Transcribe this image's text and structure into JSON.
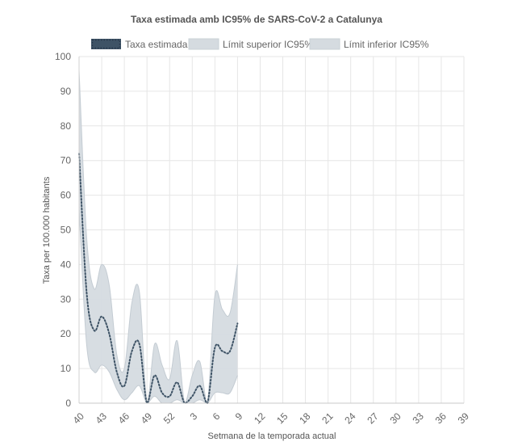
{
  "chart_data": {
    "type": "line",
    "title": "Taxa estimada amb IC95% de SARS-CoV-2 a Catalunya",
    "xlabel": "Setmana de la temporada actual",
    "ylabel": "Taxa per 100.000 habitants",
    "ylim": [
      0,
      100
    ],
    "yticks": [
      0,
      10,
      20,
      30,
      40,
      50,
      60,
      70,
      80,
      90,
      100
    ],
    "grid": true,
    "legend_position": "top",
    "x_categories": [
      "40",
      "41",
      "42",
      "43",
      "44",
      "45",
      "46",
      "47",
      "48",
      "49",
      "50",
      "51",
      "52",
      "1",
      "2",
      "3",
      "4",
      "5",
      "6",
      "7",
      "8",
      "9",
      "10",
      "11",
      "12",
      "13",
      "14",
      "15",
      "16",
      "17",
      "18",
      "19",
      "20",
      "21",
      "22",
      "23",
      "24",
      "25",
      "26",
      "27",
      "28",
      "29",
      "30",
      "31",
      "32",
      "33",
      "34",
      "35",
      "36",
      "37",
      "38",
      "39"
    ],
    "x_tick_labels": [
      "40",
      "43",
      "46",
      "49",
      "52",
      "3",
      "6",
      "9",
      "12",
      "15",
      "18",
      "21",
      "24",
      "27",
      "30",
      "33",
      "36",
      "39"
    ],
    "series": [
      {
        "name": "Taxa estimada",
        "style": "dotted",
        "color": "#3e5366",
        "values": [
          72,
          32,
          21,
          25,
          20,
          9,
          5,
          15,
          17,
          0,
          8,
          3,
          2,
          6,
          0,
          2,
          5,
          0,
          16,
          15,
          15,
          23
        ]
      },
      {
        "name": "Límit superior IC95%",
        "style": "area",
        "color": "#d5dbe0",
        "values": [
          96,
          48,
          33,
          40,
          34,
          14,
          10,
          29,
          32,
          0,
          17,
          11,
          7,
          18,
          0,
          8,
          12,
          0,
          31,
          27,
          26,
          40
        ]
      },
      {
        "name": "Límit inferior IC95%",
        "style": "area",
        "color": "#d5dbe0",
        "values": [
          56,
          17,
          9,
          11,
          9,
          4,
          1,
          3,
          5,
          0,
          2,
          0,
          0,
          1,
          0,
          0,
          1,
          0,
          3,
          3,
          3,
          8
        ]
      }
    ]
  }
}
